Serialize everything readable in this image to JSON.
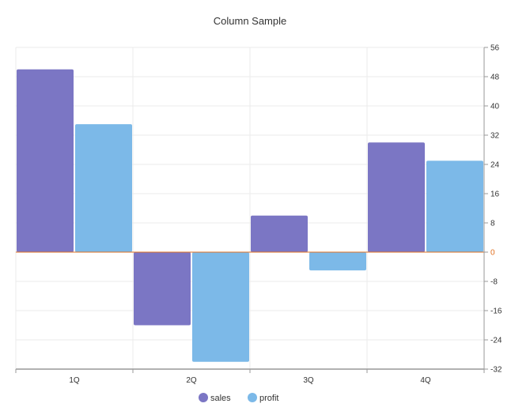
{
  "chart_data": {
    "type": "bar",
    "title": "Column Sample",
    "categories": [
      "1Q",
      "2Q",
      "3Q",
      "4Q"
    ],
    "series": [
      {
        "name": "sales",
        "values": [
          50,
          -20,
          10,
          30
        ],
        "color": "#7b76c4"
      },
      {
        "name": "profit",
        "values": [
          35,
          -30,
          -5,
          25
        ],
        "color": "#7cb9e8"
      }
    ],
    "ylim": [
      -32,
      56
    ],
    "yticks": [
      56,
      48,
      40,
      32,
      24,
      16,
      8,
      0,
      -8,
      -16,
      -24,
      -32
    ],
    "y_axis_position": "right",
    "grid": true,
    "legend": "bottom-center",
    "zero_line_color": "#e07020"
  }
}
